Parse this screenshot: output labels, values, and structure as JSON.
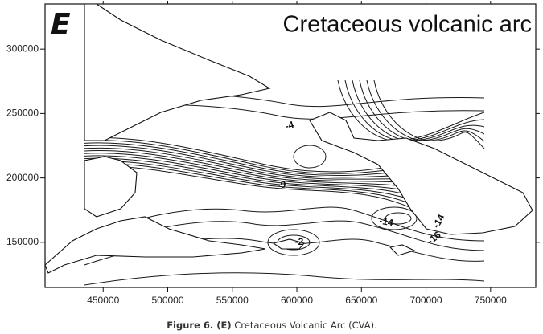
{
  "panel_letter": "E",
  "title": "Cretaceous volcanic arc",
  "x_axis": {
    "xlim": [
      405000,
      785000
    ],
    "xticks": [
      450000,
      500000,
      550000,
      600000,
      650000,
      700000,
      750000
    ]
  },
  "y_axis": {
    "ylim": [
      115000,
      335000
    ],
    "yticks": [
      150000,
      200000,
      250000,
      300000
    ]
  },
  "contour_labels": [
    "-4",
    "-9",
    "-14",
    "-14",
    "-16",
    "-2"
  ],
  "caption": {
    "label": "Figure 6. (E)",
    "text": "Cretaceous Volcanic Arc (CVA)."
  }
}
